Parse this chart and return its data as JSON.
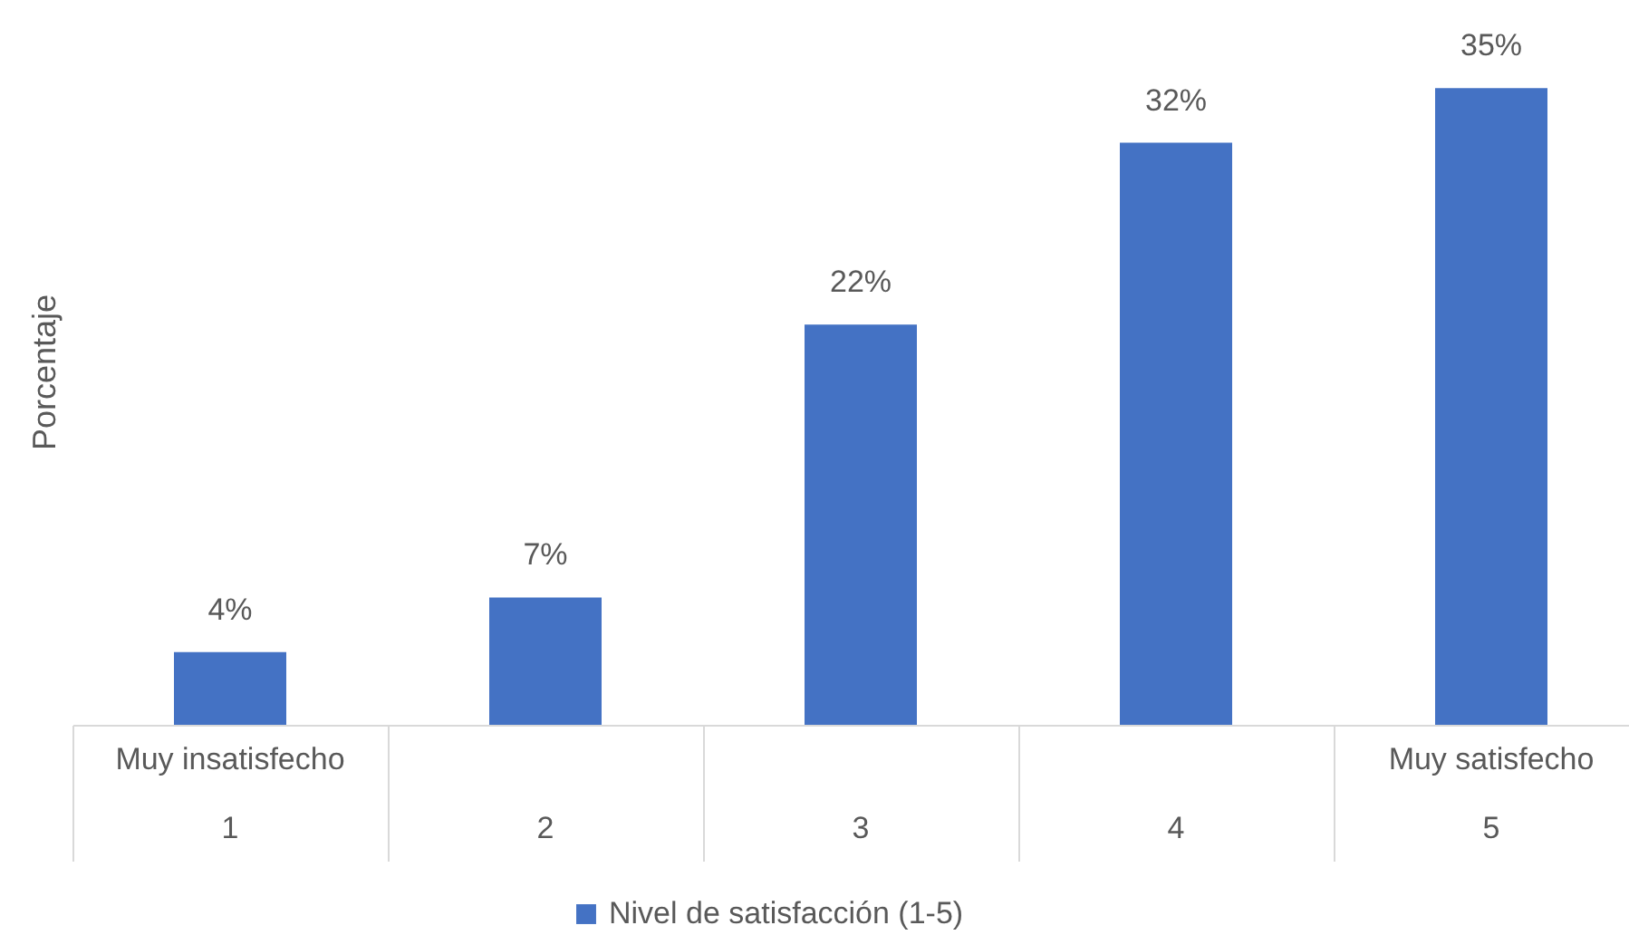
{
  "chart_data": {
    "type": "bar",
    "ylabel": "Porcentaje",
    "categories": [
      "1",
      "2",
      "3",
      "4",
      "5"
    ],
    "series": [
      {
        "name": "Nivel de satisfacción (1-5)",
        "color": "#4472c4",
        "values": [
          4,
          7,
          22,
          32,
          35
        ],
        "value_labels": [
          "4%",
          "7%",
          "22%",
          "32%",
          "35%"
        ]
      }
    ],
    "annotations": [
      "Muy insatisfecho",
      "Muy satisfecho"
    ],
    "legend": "bottom",
    "tick_labels": "x",
    "grid": false
  }
}
